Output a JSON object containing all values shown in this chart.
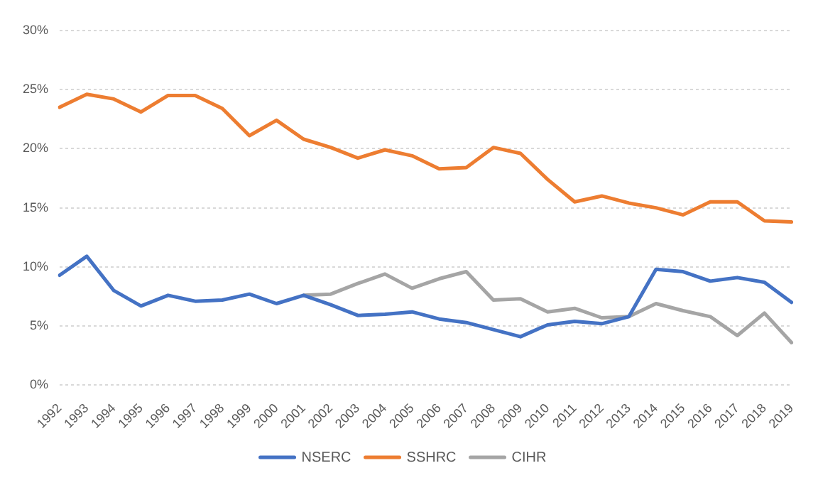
{
  "chart_data": {
    "type": "line",
    "categories": [
      "1992",
      "1993",
      "1994",
      "1995",
      "1996",
      "1997",
      "1998",
      "1999",
      "2000",
      "2001",
      "2002",
      "2003",
      "2004",
      "2005",
      "2006",
      "2007",
      "2008",
      "2009",
      "2010",
      "2011",
      "2012",
      "2013",
      "2014",
      "2015",
      "2016",
      "2017",
      "2018",
      "2019"
    ],
    "series": [
      {
        "name": "NSERC",
        "color": "#4472c4",
        "values": [
          9.3,
          10.9,
          8.0,
          6.7,
          7.6,
          7.1,
          7.2,
          7.7,
          6.9,
          7.6,
          6.8,
          5.9,
          6.0,
          6.2,
          5.6,
          5.3,
          4.7,
          4.1,
          5.1,
          5.4,
          5.2,
          5.8,
          9.8,
          9.6,
          8.8,
          9.1,
          8.7,
          7.0
        ]
      },
      {
        "name": "SSHRC",
        "color": "#ed7d31",
        "values": [
          23.5,
          24.6,
          24.2,
          23.1,
          24.5,
          24.5,
          23.4,
          21.1,
          22.4,
          20.8,
          20.1,
          19.2,
          19.9,
          19.4,
          18.3,
          18.4,
          20.1,
          19.6,
          17.4,
          15.5,
          16.0,
          15.4,
          15.0,
          14.4,
          15.5,
          15.5,
          13.9,
          13.8
        ]
      },
      {
        "name": "CIHR",
        "color": "#a5a5a5",
        "values": [
          null,
          null,
          null,
          null,
          null,
          null,
          null,
          null,
          null,
          7.6,
          7.7,
          8.6,
          9.4,
          8.2,
          9.0,
          9.6,
          7.2,
          7.3,
          6.2,
          6.5,
          5.7,
          5.8,
          6.9,
          6.3,
          5.8,
          4.2,
          6.1,
          3.6
        ]
      }
    ],
    "ylim": [
      0,
      30
    ],
    "yticks": [
      {
        "value": 0,
        "label": "0%"
      },
      {
        "value": 5,
        "label": "5%"
      },
      {
        "value": 10,
        "label": "10%"
      },
      {
        "value": 15,
        "label": "15%"
      },
      {
        "value": 20,
        "label": "20%"
      },
      {
        "value": 25,
        "label": "25%"
      },
      {
        "value": 30,
        "label": "30%"
      }
    ],
    "grid": "y",
    "legend": "bottom",
    "marker": "none",
    "line_style": "solid"
  }
}
